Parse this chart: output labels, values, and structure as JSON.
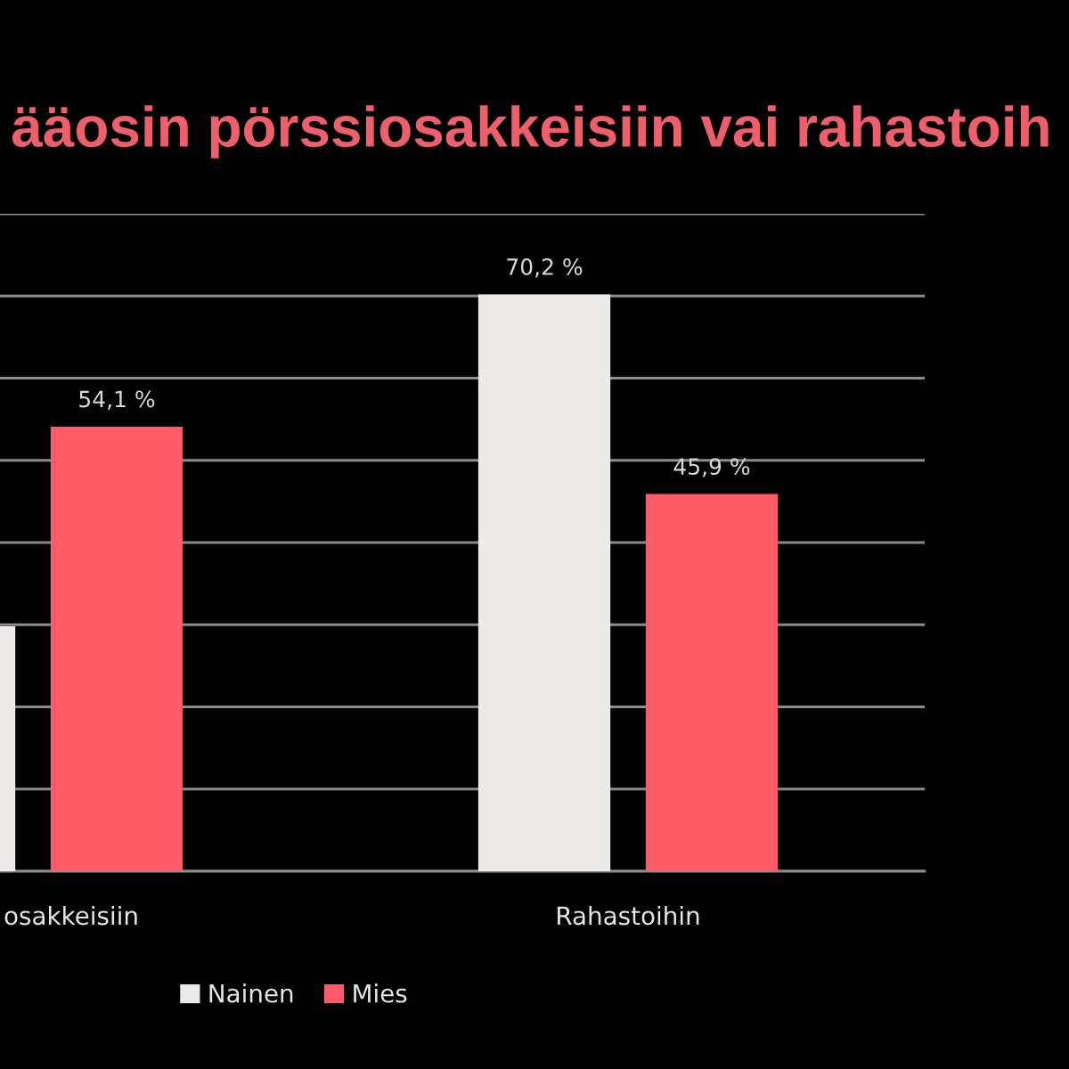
{
  "chart_data": {
    "type": "bar",
    "title": "ääosin pörssiosakkeisiin vai rahastoih",
    "categories": [
      "osakkeisiin",
      "Rahastoihin"
    ],
    "series": [
      {
        "name": "Nainen",
        "color": "#eceae6",
        "values": [
          29.8,
          70.2
        ],
        "value_labels": [
          null,
          "70,2 %"
        ]
      },
      {
        "name": "Mies",
        "color": "#fe5a68",
        "values": [
          54.1,
          45.9
        ],
        "value_labels": [
          "54,1 %",
          "45,9 %"
        ]
      }
    ],
    "ylim": [
      0,
      80
    ],
    "yticks": [
      {
        "value": 0,
        "label": null
      },
      {
        "value": 10,
        "label": null
      },
      {
        "value": 20,
        "label": null
      },
      {
        "value": 30,
        "label": null
      },
      {
        "value": 40,
        "label": null
      },
      {
        "value": 50,
        "label": null
      },
      {
        "value": 60,
        "label": null
      },
      {
        "value": 70,
        "label": null
      },
      {
        "value": 80,
        "label": null
      }
    ],
    "tick_labels": "x",
    "grid": "y",
    "legend": "bottom"
  }
}
